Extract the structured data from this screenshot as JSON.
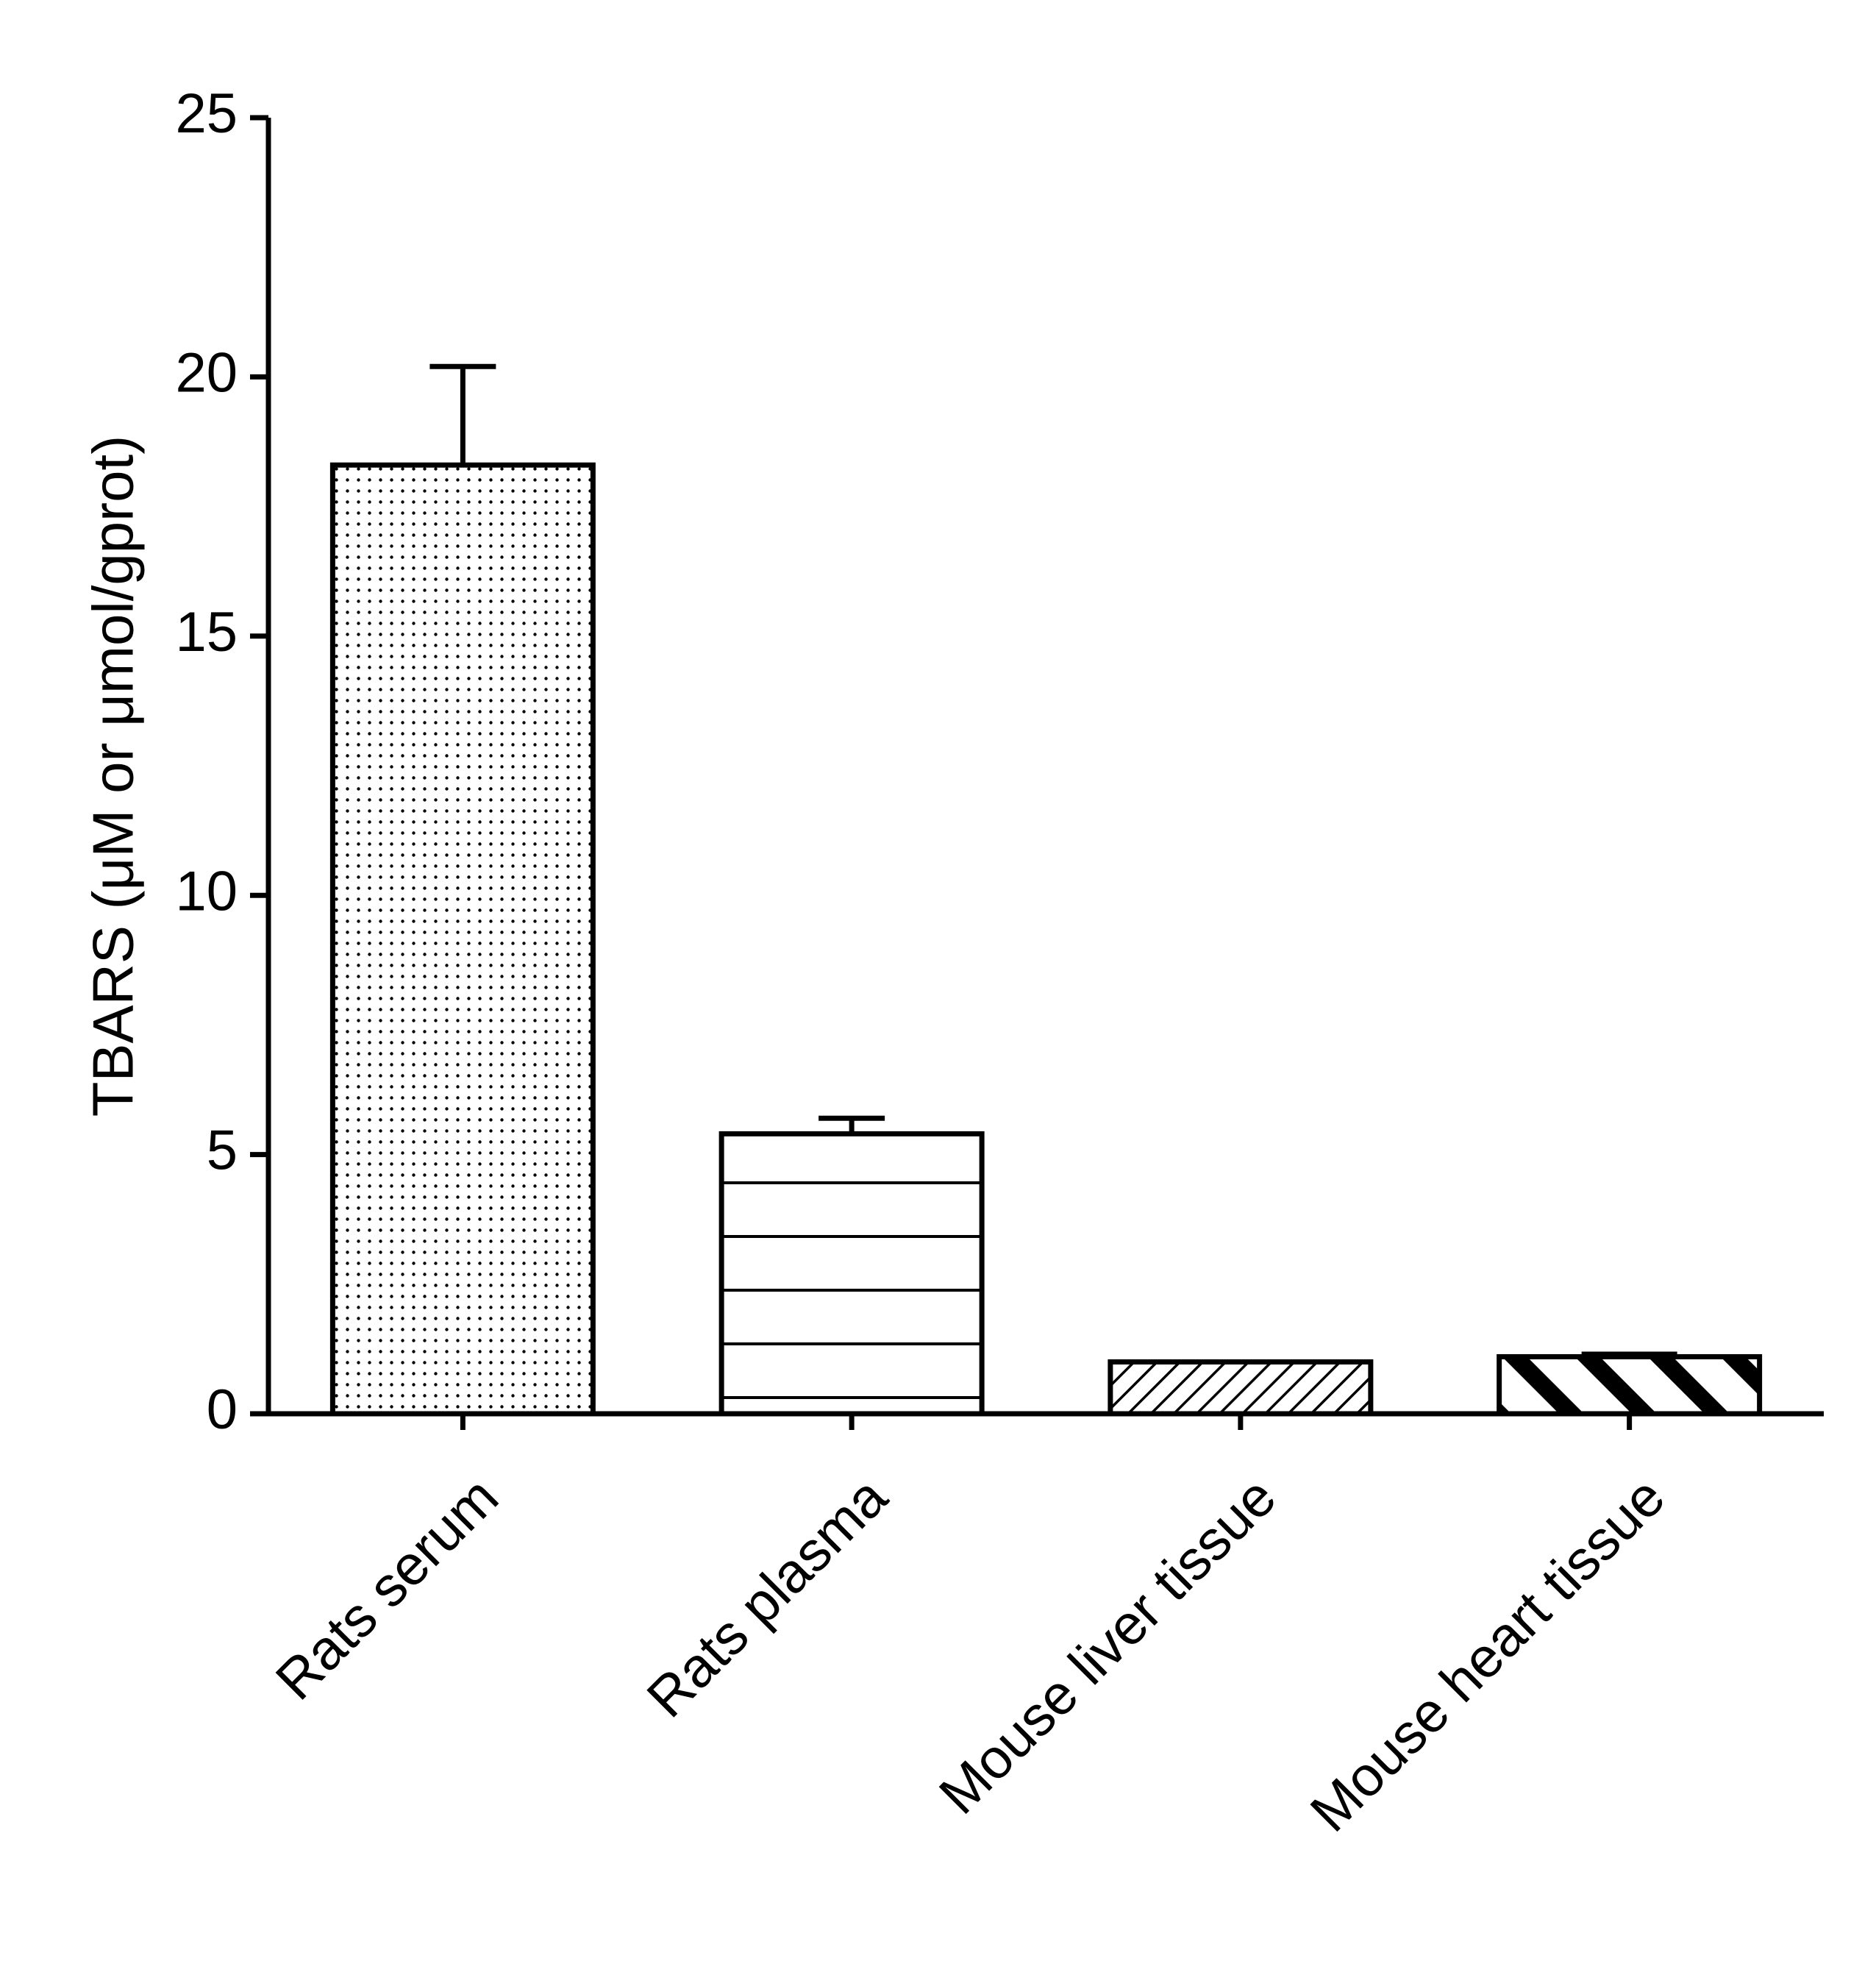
{
  "chart_data": {
    "type": "bar",
    "title": "",
    "xlabel": "",
    "ylabel": "TBARS (μM or μmol/gprot)",
    "ylim": [
      0,
      25
    ],
    "yticks": [
      0,
      5,
      10,
      15,
      20,
      25
    ],
    "categories": [
      "Rats serum",
      "Rats plasma",
      "Mouse liver tissue",
      "Mouse heart tissue"
    ],
    "values": [
      18.3,
      5.4,
      1.0,
      1.1
    ],
    "errors": [
      1.9,
      0.3,
      0.0,
      0.05
    ],
    "patterns": [
      "dots",
      "horizontal-lines",
      "fine-diagonal-hatch",
      "bold-diagonal-stripes"
    ],
    "grid": false,
    "legend": "none",
    "colors": {
      "bar_fill": "#ffffff",
      "stroke": "#000000"
    }
  }
}
